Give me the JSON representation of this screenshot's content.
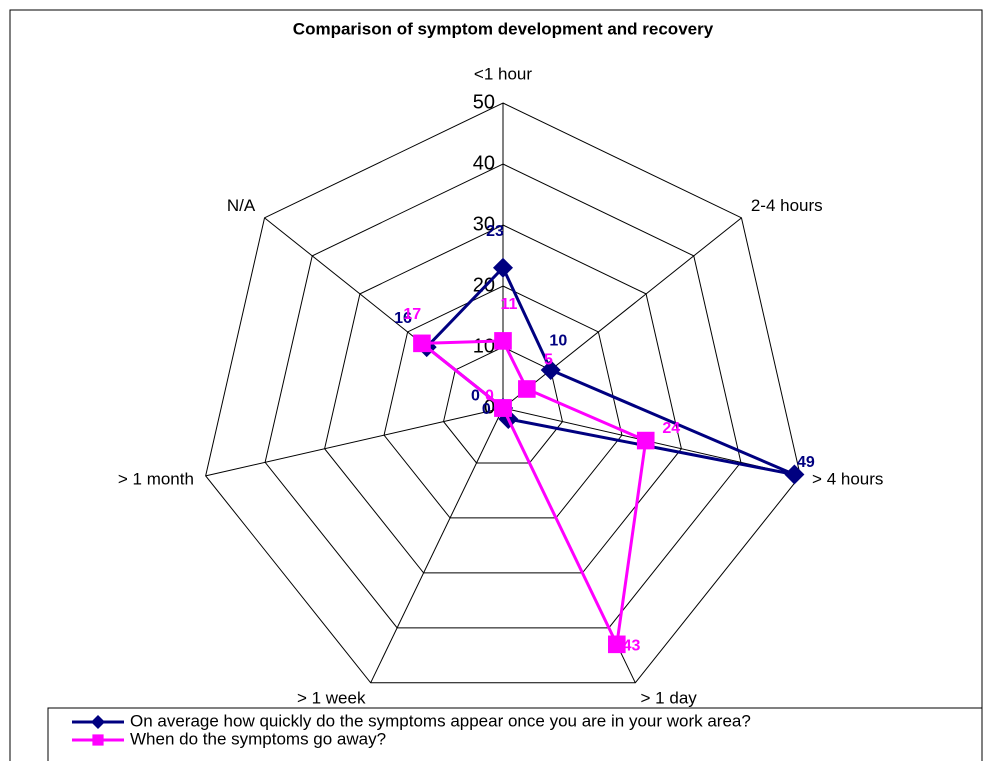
{
  "chart_data": {
    "type": "radar",
    "title": "Comparison of symptom development and recovery",
    "categories": [
      "<1 hour",
      "2-4 hours",
      "> 4 hours",
      "> 1 day",
      "> 1 week",
      "> 1 month",
      "N/A"
    ],
    "series": [
      {
        "name": "On average how quickly do the symptoms appear once you are in your work area?",
        "color": "#000080",
        "marker": "diamond",
        "values": [
          23,
          10,
          49,
          2,
          0,
          0,
          16
        ]
      },
      {
        "name": "When do the symptoms go away?",
        "color": "#ff00ff",
        "marker": "square",
        "values": [
          11,
          5,
          24,
          43,
          0,
          0,
          17
        ]
      }
    ],
    "ylim": [
      0,
      50
    ],
    "yticks": [
      0,
      10,
      20,
      30,
      40,
      50
    ],
    "grid": true,
    "legend": "bottom"
  }
}
